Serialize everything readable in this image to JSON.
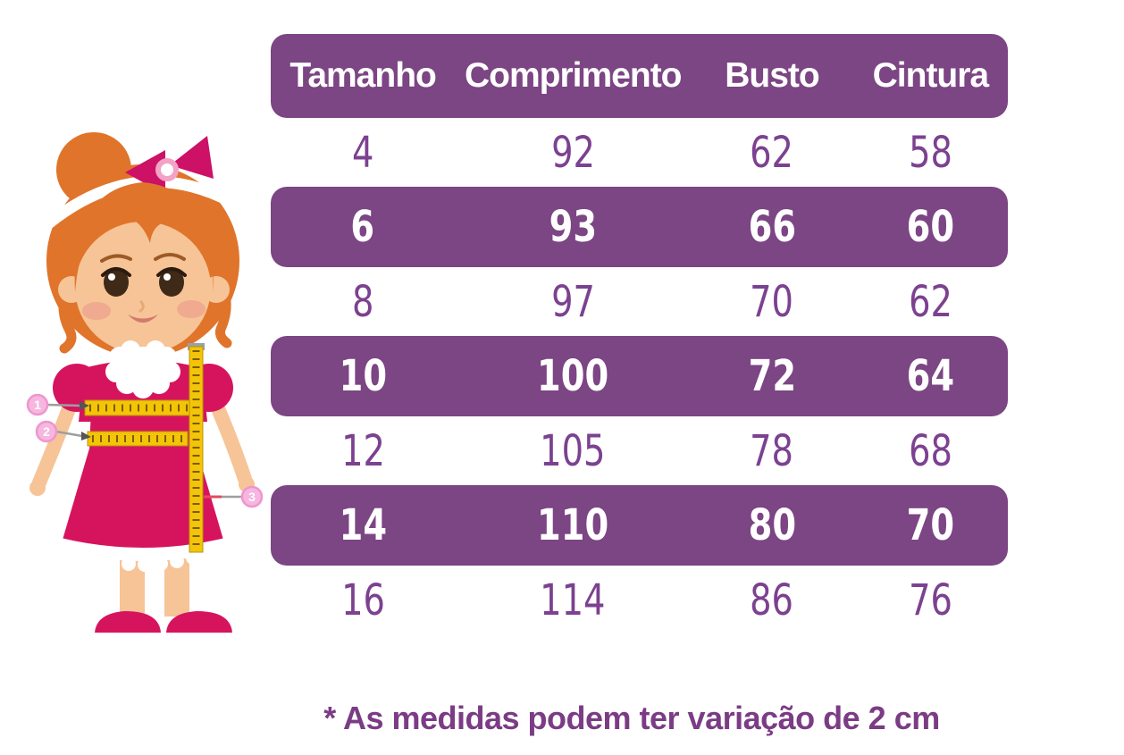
{
  "table": {
    "headers": [
      "Tamanho",
      "Comprimento",
      "Busto",
      "Cintura"
    ],
    "rows": [
      {
        "values": [
          "4",
          "92",
          "62",
          "58"
        ],
        "highlighted": false
      },
      {
        "values": [
          "6",
          "93",
          "66",
          "60"
        ],
        "highlighted": true
      },
      {
        "values": [
          "8",
          "97",
          "70",
          "62"
        ],
        "highlighted": false
      },
      {
        "values": [
          "10",
          "100",
          "72",
          "64"
        ],
        "highlighted": true
      },
      {
        "values": [
          "12",
          "105",
          "78",
          "68"
        ],
        "highlighted": false
      },
      {
        "values": [
          "14",
          "110",
          "80",
          "70"
        ],
        "highlighted": true
      },
      {
        "values": [
          "16",
          "114",
          "86",
          "76"
        ],
        "highlighted": false
      }
    ]
  },
  "footnote": "* As medidas podem ter variação de 2 cm",
  "illustration": {
    "alt": "Menina de vestido rosa com fitas métricas indicando busto, cintura e comprimento",
    "markers": [
      "1",
      "2",
      "3"
    ]
  },
  "colors": {
    "band_purple": "#7C4584",
    "text_purple": "#7C4190",
    "highlight_text": "#FFFFFF",
    "dress_pink": "#D6145E",
    "hair_orange": "#E0742B",
    "skin": "#F6C496",
    "tape_yellow": "#F3C407",
    "marker_pink": "#F7B6DF"
  },
  "chart_data": {
    "type": "table",
    "columns": [
      "Tamanho",
      "Comprimento",
      "Busto",
      "Cintura"
    ],
    "rows": [
      [
        4,
        92,
        62,
        58
      ],
      [
        6,
        93,
        66,
        60
      ],
      [
        8,
        97,
        70,
        62
      ],
      [
        10,
        100,
        72,
        64
      ],
      [
        12,
        105,
        78,
        68
      ],
      [
        14,
        110,
        80,
        70
      ],
      [
        16,
        114,
        86,
        76
      ]
    ],
    "highlighted_sizes": [
      6,
      10,
      14
    ],
    "footnote": "* As medidas podem ter variação de 2 cm",
    "legend_position": "none",
    "grid": false
  }
}
